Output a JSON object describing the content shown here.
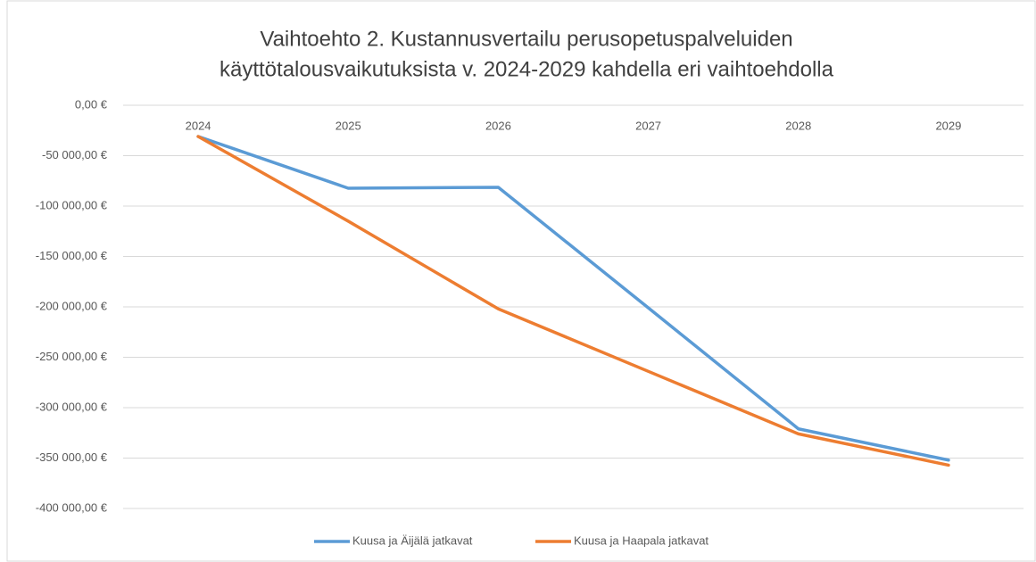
{
  "chart_data": {
    "type": "line",
    "title": [
      "Vaihtoehto 2. Kustannusvertailu perusopetuspalveluiden",
      "käyttötalousvaikutuksista v. 2024-2029 kahdella eri vaihtoehdolla"
    ],
    "categories": [
      "2024",
      "2025",
      "2026",
      "2027",
      "2028",
      "2029"
    ],
    "series": [
      {
        "name": "Kuusa ja Äijälä jatkavat",
        "color": "#5b9bd5",
        "values": [
          -31000,
          -82300,
          -81400,
          -201000,
          -321000,
          -352000
        ]
      },
      {
        "name": "Kuusa ja Haapala jatkavat",
        "color": "#ed7d31",
        "values": [
          -31000,
          -115000,
          -202000,
          -264000,
          -326000,
          -357000
        ]
      }
    ],
    "ylim": [
      -400000,
      0
    ],
    "yticks": [
      {
        "value": 0,
        "label": "0,00 €"
      },
      {
        "value": -50000,
        "label": "-50 000,00 €"
      },
      {
        "value": -100000,
        "label": "-100 000,00 €"
      },
      {
        "value": -150000,
        "label": "-150 000,00 €"
      },
      {
        "value": -200000,
        "label": "-200 000,00 €"
      },
      {
        "value": -250000,
        "label": "-250 000,00 €"
      },
      {
        "value": -300000,
        "label": "-300 000,00 €"
      },
      {
        "value": -350000,
        "label": "-350 000,00 €"
      },
      {
        "value": -400000,
        "label": "-400 000,00 €"
      }
    ],
    "grid": true,
    "legend": "bottom"
  }
}
